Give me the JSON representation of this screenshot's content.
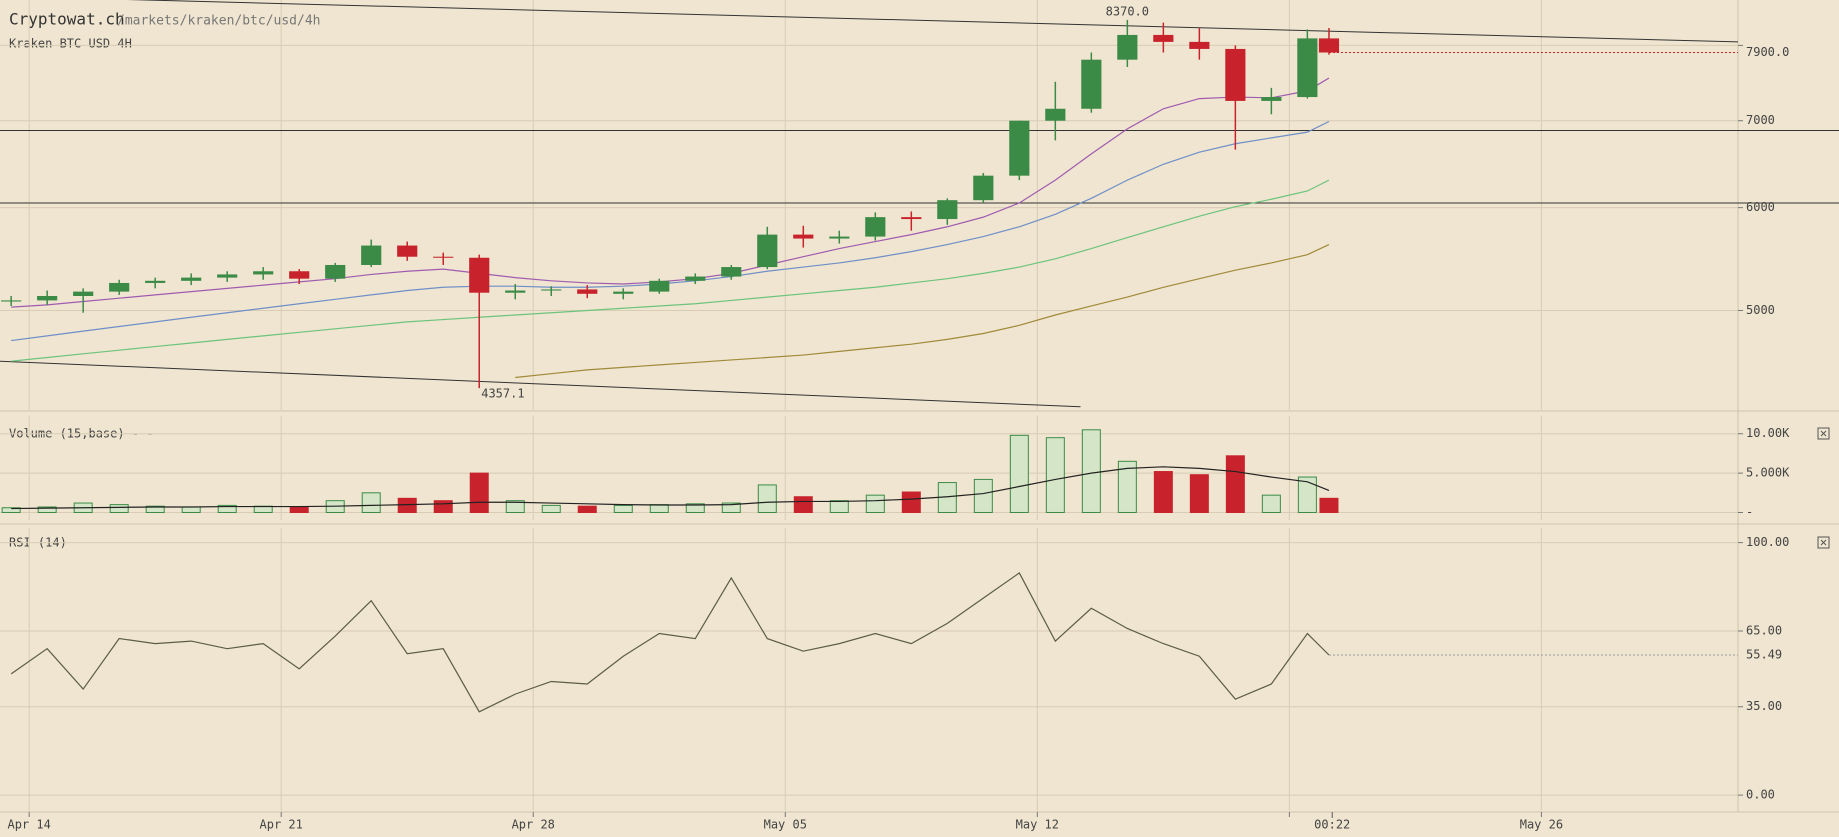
{
  "header": {
    "site": "Cryptowat.ch",
    "path": "/markets/kraken/btc/usd/4h"
  },
  "chart_data": [
    {
      "type": "candlestick",
      "title": "Kraken BTC USD 4H",
      "log": true,
      "grid": true,
      "up_color": "#3b8b47",
      "down_color": "#c8232c",
      "xlim": [
        -0.81,
        47.46
      ],
      "ylim": [
        4206,
        8640
      ],
      "yticks": [
        5000,
        6000,
        7000,
        {
          "value": 8000,
          "label": null
        }
      ],
      "x": [
        -0.5,
        0.5,
        1.5,
        2.5,
        3.5,
        4.5,
        5.5,
        6.5,
        7.5,
        8.5,
        9.5,
        10.5,
        11.5,
        12.5,
        13.5,
        14.5,
        15.5,
        16.5,
        17.5,
        18.5,
        19.5,
        20.5,
        21.5,
        22.5,
        23.5,
        24.5,
        25.5,
        26.5,
        27.5,
        28.5,
        29.5,
        30.5,
        31.5,
        32.5,
        33.5,
        34.5,
        35.5,
        36.1
      ],
      "open": [
        5080,
        5090,
        5130,
        5170,
        5250,
        5270,
        5300,
        5330,
        5360,
        5290,
        5420,
        5610,
        5500,
        5490,
        5160,
        5180,
        5190,
        5150,
        5170,
        5270,
        5310,
        5400,
        5720,
        5680,
        5700,
        5900,
        5880,
        6080,
        6350,
        7000,
        7150,
        7800,
        8150,
        8050,
        7950,
        7250,
        7300,
        8100
      ],
      "high": [
        5130,
        5180,
        5200,
        5280,
        5300,
        5340,
        5360,
        5400,
        5380,
        5440,
        5670,
        5650,
        5540,
        5520,
        5240,
        5220,
        5230,
        5200,
        5290,
        5340,
        5420,
        5800,
        5810,
        5760,
        5950,
        5960,
        6100,
        6380,
        7000,
        7500,
        7900,
        8370,
        8330,
        8250,
        8000,
        7420,
        8230,
        8250
      ],
      "low": [
        5040,
        5050,
        4980,
        5140,
        5200,
        5230,
        5260,
        5280,
        5240,
        5260,
        5400,
        5460,
        5420,
        4357.1,
        5100,
        5130,
        5110,
        5100,
        5150,
        5240,
        5280,
        5380,
        5590,
        5630,
        5660,
        5760,
        5820,
        6050,
        6300,
        6760,
        7100,
        7700,
        7900,
        7800,
        6650,
        7080,
        7280,
        7870
      ],
      "close": [
        5090,
        5130,
        5170,
        5250,
        5270,
        5300,
        5330,
        5360,
        5290,
        5420,
        5610,
        5500,
        5490,
        5160,
        5180,
        5190,
        5150,
        5170,
        5270,
        5310,
        5400,
        5720,
        5680,
        5700,
        5900,
        5880,
        6080,
        6350,
        7000,
        7150,
        7800,
        8150,
        8050,
        7950,
        7250,
        7300,
        8100,
        7900
      ],
      "value_labels": {
        "high": [
          null,
          null,
          null,
          null,
          null,
          null,
          null,
          null,
          null,
          null,
          null,
          null,
          null,
          null,
          null,
          null,
          null,
          null,
          null,
          null,
          null,
          null,
          null,
          null,
          null,
          null,
          null,
          null,
          null,
          null,
          null,
          "8370.0",
          null,
          null,
          null,
          null,
          null,
          null
        ],
        "low": [
          null,
          null,
          null,
          null,
          null,
          null,
          null,
          null,
          null,
          null,
          null,
          null,
          null,
          "4357.1",
          null,
          null,
          null,
          null,
          null,
          null,
          null,
          null,
          null,
          null,
          null,
          null,
          null,
          null,
          null,
          null,
          null,
          null,
          null,
          null,
          null,
          null,
          null,
          null
        ],
        "close": [
          null,
          null,
          null,
          null,
          null,
          null,
          null,
          null,
          null,
          null,
          null,
          null,
          null,
          null,
          null,
          null,
          null,
          null,
          null,
          null,
          null,
          null,
          null,
          null,
          null,
          null,
          null,
          null,
          null,
          null,
          null,
          null,
          null,
          null,
          null,
          null,
          null,
          "7900.0"
        ]
      },
      "series": [
        {
          "color": "#a05bb0",
          "values": [
            5030,
            5050,
            5080,
            5110,
            5140,
            5170,
            5200,
            5230,
            5260,
            5290,
            5330,
            5360,
            5380,
            5340,
            5300,
            5270,
            5250,
            5240,
            5260,
            5290,
            5340,
            5420,
            5500,
            5580,
            5650,
            5720,
            5800,
            5900,
            6050,
            6300,
            6600,
            6900,
            7150,
            7280,
            7300,
            7290,
            7380,
            7550
          ]
        },
        {
          "color": "#6f8fc8",
          "values": [
            4740,
            4780,
            4820,
            4860,
            4900,
            4940,
            4980,
            5020,
            5060,
            5100,
            5140,
            5180,
            5210,
            5220,
            5220,
            5210,
            5210,
            5220,
            5240,
            5270,
            5310,
            5360,
            5400,
            5440,
            5490,
            5550,
            5620,
            5700,
            5800,
            5930,
            6100,
            6300,
            6480,
            6620,
            6720,
            6790,
            6860,
            6990
          ]
        },
        {
          "color": "#6cc47c",
          "values": [
            4570,
            4600,
            4630,
            4660,
            4690,
            4720,
            4750,
            4780,
            4810,
            4840,
            4870,
            4900,
            4920,
            4940,
            4960,
            4980,
            5000,
            5020,
            5040,
            5060,
            5090,
            5120,
            5150,
            5180,
            5210,
            5250,
            5290,
            5340,
            5400,
            5480,
            5580,
            5690,
            5800,
            5910,
            6010,
            6090,
            6180,
            6300
          ]
        },
        {
          "color": "#a08a3a",
          "values": [
            null,
            null,
            null,
            null,
            null,
            null,
            null,
            null,
            null,
            null,
            null,
            null,
            null,
            null,
            4440,
            4470,
            4500,
            4520,
            4540,
            4560,
            4580,
            4600,
            4620,
            4650,
            4680,
            4710,
            4750,
            4800,
            4870,
            4960,
            5040,
            5120,
            5210,
            5290,
            5370,
            5440,
            5520,
            5620
          ]
        }
      ],
      "trend_lines": [
        {
          "x": [
            -0.81,
            47.46
          ],
          "values": [
            8730,
            8050
          ]
        },
        {
          "x": [
            -0.81,
            29.2
          ],
          "values": [
            4570,
            4215
          ]
        }
      ],
      "hlines": [
        6880,
        6050
      ]
    },
    {
      "type": "bar",
      "title": "Volume (15,base) - -",
      "grid": true,
      "up_color": "#3b8b47",
      "down_color": "#c8232c",
      "xlim": [
        -0.81,
        47.46
      ],
      "ylim": [
        -700,
        12000
      ],
      "yticks": [
        {
          "value": 0,
          "label": "-"
        },
        {
          "value": 5000,
          "label": "5.000K"
        },
        {
          "value": 10000,
          "label": "10.00K"
        }
      ],
      "x": [
        -0.5,
        0.5,
        1.5,
        2.5,
        3.5,
        4.5,
        5.5,
        6.5,
        7.5,
        8.5,
        9.5,
        10.5,
        11.5,
        12.5,
        13.5,
        14.5,
        15.5,
        16.5,
        17.5,
        18.5,
        19.5,
        20.5,
        21.5,
        22.5,
        23.5,
        24.5,
        25.5,
        26.5,
        27.5,
        28.5,
        29.5,
        30.5,
        31.5,
        32.5,
        33.5,
        34.5,
        35.5,
        36.1
      ],
      "values": [
        600,
        700,
        1200,
        1000,
        800,
        700,
        900,
        800,
        700,
        1500,
        2500,
        1800,
        1500,
        5000,
        1500,
        900,
        800,
        900,
        1000,
        1100,
        1200,
        3500,
        2000,
        1500,
        2200,
        2600,
        3800,
        4200,
        9800,
        9500,
        10500,
        6500,
        5200,
        4800,
        7200,
        2200,
        4500,
        1800
      ],
      "series": [
        {
          "color": "#222222",
          "values": [
            500,
            550,
            600,
            650,
            700,
            700,
            750,
            750,
            750,
            800,
            900,
            1000,
            1100,
            1300,
            1300,
            1200,
            1100,
            1000,
            950,
            950,
            1000,
            1300,
            1400,
            1400,
            1500,
            1700,
            2000,
            2400,
            3300,
            4200,
            5000,
            5600,
            5800,
            5600,
            5200,
            4500,
            3900,
            2800
          ]
        }
      ]
    },
    {
      "type": "line",
      "title": "RSI (14)",
      "grid": true,
      "color": "#5c5c44",
      "xlim": [
        -0.81,
        47.46
      ],
      "ylim": [
        -5.5,
        105
      ],
      "yticks": [
        {
          "value": 0,
          "label": "0.00"
        },
        {
          "value": 35,
          "label": "35.00"
        },
        {
          "value": 65,
          "label": "65.00"
        },
        {
          "value": 100,
          "label": "100.00"
        }
      ],
      "xticks": [
        {
          "value": 0,
          "label": "Apr 14"
        },
        {
          "value": 7,
          "label": "Apr 21"
        },
        {
          "value": 14,
          "label": "Apr 28"
        },
        {
          "value": 21,
          "label": "May 05"
        },
        {
          "value": 28,
          "label": "May 12"
        },
        {
          "value": 35,
          "label": null
        },
        {
          "value": 42,
          "label": "May 26"
        }
      ],
      "x_marker": {
        "value": 36.19,
        "label": "00:22"
      },
      "x": [
        -0.5,
        0.5,
        1.5,
        2.5,
        3.5,
        4.5,
        5.5,
        6.5,
        7.5,
        8.5,
        9.5,
        10.5,
        11.5,
        12.5,
        13.5,
        14.5,
        15.5,
        16.5,
        17.5,
        18.5,
        19.5,
        20.5,
        21.5,
        22.5,
        23.5,
        24.5,
        25.5,
        26.5,
        27.5,
        28.5,
        29.5,
        30.5,
        31.5,
        32.5,
        33.5,
        34.5,
        35.5,
        36.1
      ],
      "values": [
        48,
        58,
        42,
        62,
        60,
        61,
        58,
        60,
        50,
        63,
        77,
        56,
        58,
        33,
        40,
        45,
        44,
        55,
        64,
        62,
        86,
        62,
        57,
        60,
        64,
        60,
        68,
        78,
        88,
        61,
        74,
        66,
        60,
        55,
        38,
        44,
        64,
        55.49
      ],
      "value_labels": [
        null,
        null,
        null,
        null,
        null,
        null,
        null,
        null,
        null,
        null,
        null,
        null,
        null,
        null,
        null,
        null,
        null,
        null,
        null,
        null,
        null,
        null,
        null,
        null,
        null,
        null,
        null,
        null,
        null,
        null,
        null,
        null,
        null,
        null,
        null,
        null,
        null,
        "55.49"
      ]
    }
  ]
}
